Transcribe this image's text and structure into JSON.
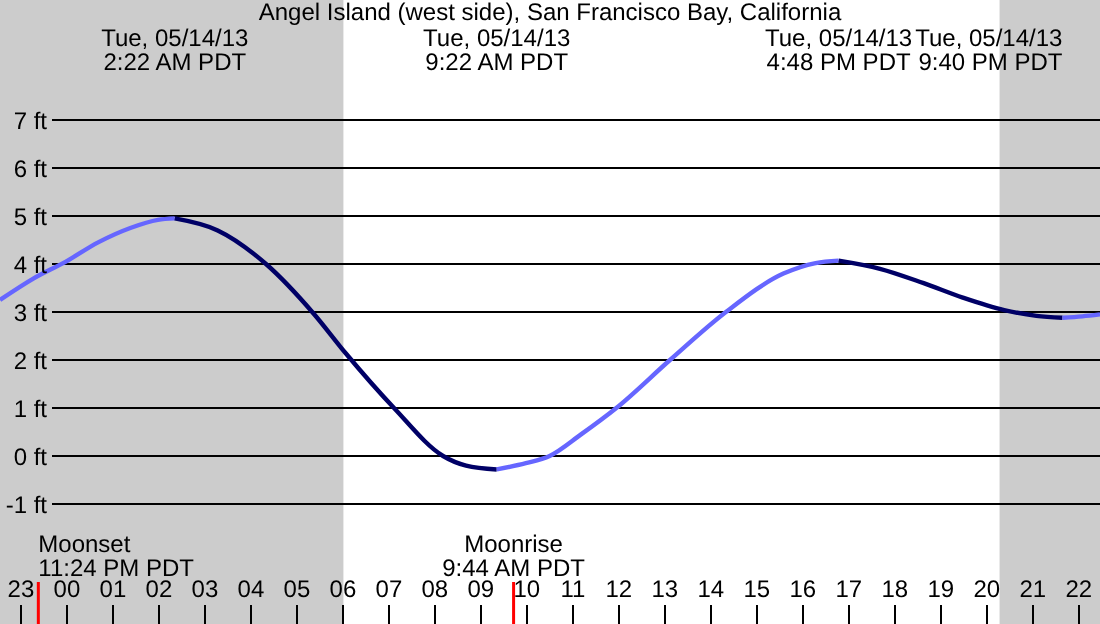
{
  "chart_data": {
    "type": "line",
    "title": "Angel Island (west side), San Francisco Bay, California",
    "xlim": [
      "--05-13T22:34",
      "--05-14T22:29"
    ],
    "ylim": [
      -3.5,
      9.5
    ],
    "xticks": [
      {
        "value": "--05-13T23:00",
        "label": "23"
      },
      {
        "value": "--05-14T00:00",
        "label": "00"
      },
      {
        "value": "--05-14T01:00",
        "label": "01"
      },
      {
        "value": "--05-14T02:00",
        "label": "02"
      },
      {
        "value": "--05-14T03:00",
        "label": "03"
      },
      {
        "value": "--05-14T04:00",
        "label": "04"
      },
      {
        "value": "--05-14T05:00",
        "label": "05"
      },
      {
        "value": "--05-14T06:00",
        "label": "06"
      },
      {
        "value": "--05-14T07:00",
        "label": "07"
      },
      {
        "value": "--05-14T08:00",
        "label": "08"
      },
      {
        "value": "--05-14T09:00",
        "label": "09"
      },
      {
        "value": "--05-14T10:00",
        "label": "10"
      },
      {
        "value": "--05-14T11:00",
        "label": "11"
      },
      {
        "value": "--05-14T12:00",
        "label": "12"
      },
      {
        "value": "--05-14T13:00",
        "label": "13"
      },
      {
        "value": "--05-14T14:00",
        "label": "14"
      },
      {
        "value": "--05-14T15:00",
        "label": "15"
      },
      {
        "value": "--05-14T16:00",
        "label": "16"
      },
      {
        "value": "--05-14T17:00",
        "label": "17"
      },
      {
        "value": "--05-14T18:00",
        "label": "18"
      },
      {
        "value": "--05-14T19:00",
        "label": "19"
      },
      {
        "value": "--05-14T20:00",
        "label": "20"
      },
      {
        "value": "--05-14T21:00",
        "label": "21"
      },
      {
        "value": "--05-14T22:00",
        "label": "22"
      }
    ],
    "yticks": [
      {
        "value": -1,
        "label": "-1 ft"
      },
      {
        "value": 0,
        "label": "0 ft"
      },
      {
        "value": 1,
        "label": "1 ft"
      },
      {
        "value": 2,
        "label": "2 ft"
      },
      {
        "value": 3,
        "label": "3 ft"
      },
      {
        "value": 4,
        "label": "4 ft"
      },
      {
        "value": 5,
        "label": "5 ft"
      },
      {
        "value": 6,
        "label": "6 ft"
      },
      {
        "value": 7,
        "label": "7 ft"
      }
    ],
    "grid": "y",
    "series": [
      {
        "color": "#6666ff",
        "x": [
          "--05-13T22:34",
          "--05-13T23:18",
          "--05-14T00:00",
          "--05-14T00:42",
          "--05-14T01:24",
          "--05-14T02:00",
          "--05-14T02:22"
        ],
        "values": [
          3.25,
          3.7,
          4.05,
          4.45,
          4.75,
          4.92,
          4.95
        ]
      },
      {
        "color": "#000066",
        "x": [
          "--05-14T02:22",
          "--05-14T03:18",
          "--05-14T04:21",
          "--05-14T05:23",
          "--05-14T06:05",
          "--05-14T07:08",
          "--05-14T08:12",
          "--05-14T08:42",
          "--05-14T09:22"
        ],
        "values": [
          4.95,
          4.7,
          4.0,
          2.97,
          2.14,
          1.0,
          0.0,
          -0.2,
          -0.28
        ]
      },
      {
        "color": "#6666ff",
        "x": [
          "--05-14T09:22",
          "--05-14T10:00",
          "--05-14T10:31",
          "--05-14T11:12",
          "--05-14T11:58",
          "--05-14T13:08",
          "--05-14T14:21",
          "--05-14T15:36",
          "--05-14T16:18",
          "--05-14T16:48"
        ],
        "values": [
          -0.28,
          -0.15,
          0.0,
          0.45,
          1.0,
          2.0,
          3.0,
          3.8,
          4.02,
          4.07
        ]
      },
      {
        "color": "#000066",
        "x": [
          "--05-14T16:48",
          "--05-14T17:42",
          "--05-14T18:39",
          "--05-14T19:30",
          "--05-14T20:24",
          "--05-14T21:06",
          "--05-14T21:40"
        ],
        "values": [
          4.07,
          3.9,
          3.6,
          3.3,
          3.04,
          2.92,
          2.88
        ]
      },
      {
        "color": "#6666ff",
        "x": [
          "--05-14T21:40",
          "--05-14T22:06",
          "--05-14T22:29"
        ],
        "values": [
          2.88,
          2.91,
          2.95
        ]
      }
    ],
    "bands": [
      {
        "axis": "x",
        "from": "--05-13T22:34",
        "to": "--05-14T06:02",
        "color": "#cccccc"
      },
      {
        "axis": "x",
        "from": "--05-14T20:18",
        "to": "--05-14T22:29",
        "color": "#cccccc"
      }
    ],
    "ref_lines": [
      {
        "axis": "x",
        "value": "--05-13T23:24",
        "label": "Moonset\n11:24 PM PDT",
        "color": "#ff0000"
      },
      {
        "axis": "x",
        "value": "--05-14T09:44",
        "label": "Moonrise\n9:44 AM PDT",
        "color": "#ff0000"
      }
    ],
    "annotations": [
      "Tue, 05/14/13\n2:22 AM PDT",
      "Tue, 05/14/13\n9:22 AM PDT",
      "Tue, 05/14/13\n4:48 PM PDT",
      "Tue, 05/14/13\n9:40 PM PDT"
    ]
  }
}
